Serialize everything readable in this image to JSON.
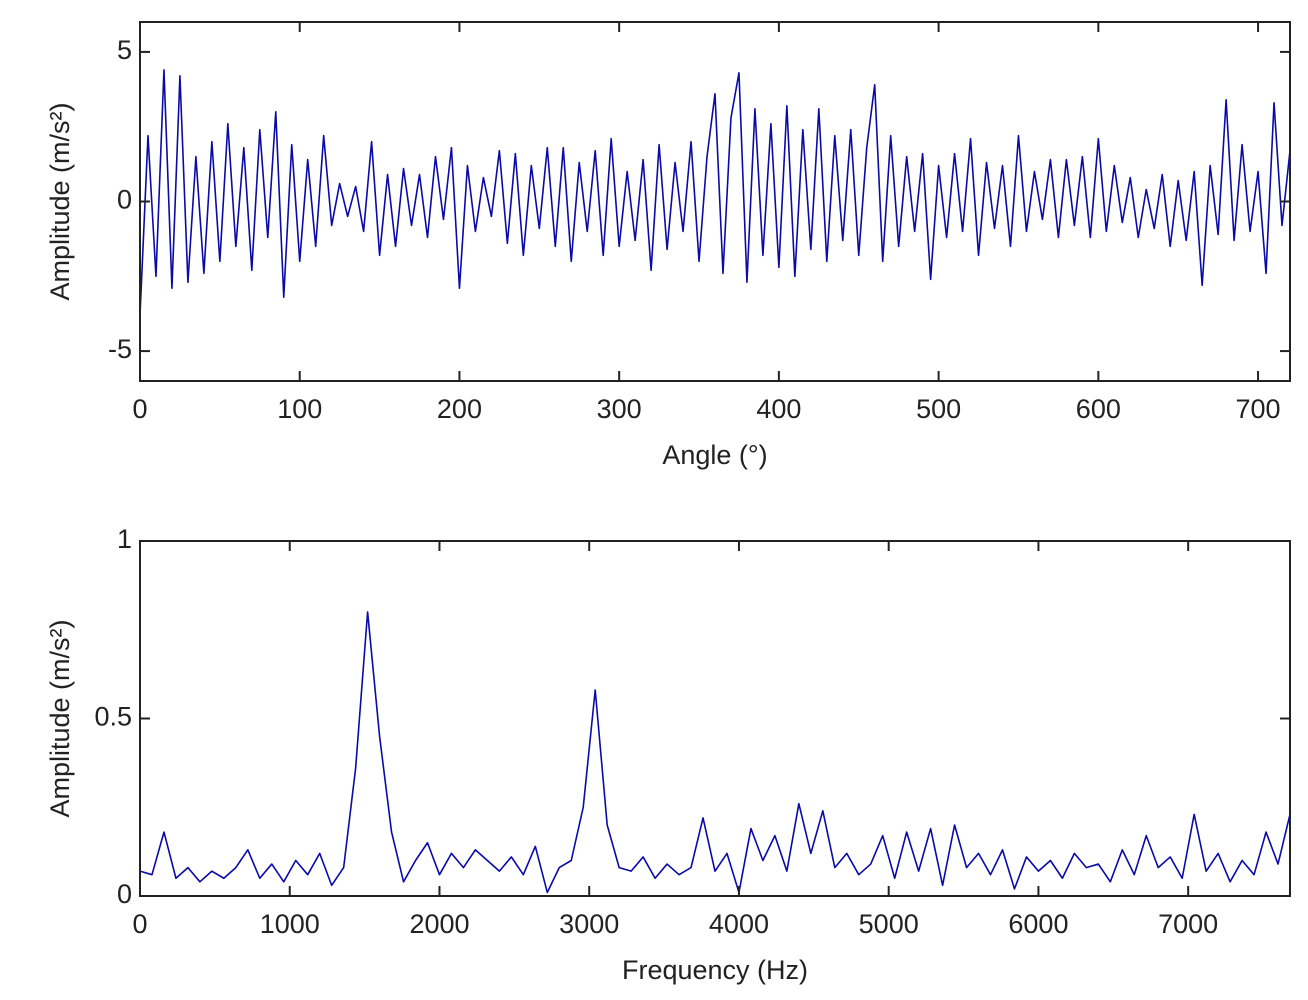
{
  "chart_data": [
    {
      "type": "line",
      "xlabel": "Angle (°)",
      "ylabel": "Amplitude (m/s²)",
      "color": "#0a0aa8",
      "xlim": [
        0,
        720
      ],
      "ylim": [
        -6,
        6
      ],
      "xticks": [
        0,
        100,
        200,
        300,
        400,
        500,
        600,
        700
      ],
      "yticks": [
        -5,
        0,
        5
      ],
      "x": [
        0,
        5,
        10,
        15,
        20,
        25,
        30,
        35,
        40,
        45,
        50,
        55,
        60,
        65,
        70,
        75,
        80,
        85,
        90,
        95,
        100,
        105,
        110,
        115,
        120,
        125,
        130,
        135,
        140,
        145,
        150,
        155,
        160,
        165,
        170,
        175,
        180,
        185,
        190,
        195,
        200,
        205,
        210,
        215,
        220,
        225,
        230,
        235,
        240,
        245,
        250,
        255,
        260,
        265,
        270,
        275,
        280,
        285,
        290,
        295,
        300,
        305,
        310,
        315,
        320,
        325,
        330,
        335,
        340,
        345,
        350,
        355,
        360,
        365,
        370,
        375,
        380,
        385,
        390,
        395,
        400,
        405,
        410,
        415,
        420,
        425,
        430,
        435,
        440,
        445,
        450,
        455,
        460,
        465,
        470,
        475,
        480,
        485,
        490,
        495,
        500,
        505,
        510,
        515,
        520,
        525,
        530,
        535,
        540,
        545,
        550,
        555,
        560,
        565,
        570,
        575,
        580,
        585,
        590,
        595,
        600,
        605,
        610,
        615,
        620,
        625,
        630,
        635,
        640,
        645,
        650,
        655,
        660,
        665,
        670,
        675,
        680,
        685,
        690,
        695,
        700,
        705,
        710,
        715,
        720
      ],
      "values": [
        -3.8,
        2.2,
        -2.5,
        4.4,
        -2.9,
        4.2,
        -2.7,
        1.5,
        -2.4,
        2.0,
        -2.0,
        2.6,
        -1.5,
        1.8,
        -2.3,
        2.4,
        -1.2,
        3.0,
        -3.2,
        1.9,
        -2.0,
        1.4,
        -1.5,
        2.2,
        -0.8,
        0.6,
        -0.5,
        0.5,
        -1.0,
        2.0,
        -1.8,
        0.9,
        -1.5,
        1.1,
        -0.8,
        0.9,
        -1.2,
        1.5,
        -0.6,
        1.8,
        -2.9,
        1.2,
        -1.0,
        0.8,
        -0.5,
        1.7,
        -1.4,
        1.6,
        -1.8,
        1.2,
        -0.9,
        1.8,
        -1.5,
        1.8,
        -2.0,
        1.3,
        -1.0,
        1.7,
        -1.8,
        2.1,
        -1.5,
        1.0,
        -1.3,
        1.4,
        -2.3,
        1.9,
        -1.6,
        1.3,
        -1.0,
        2.0,
        -2.0,
        1.5,
        3.6,
        -2.4,
        2.8,
        4.3,
        -2.7,
        3.1,
        -1.8,
        2.6,
        -2.2,
        3.2,
        -2.5,
        2.4,
        -1.6,
        3.1,
        -2.0,
        2.2,
        -1.3,
        2.4,
        -1.8,
        1.8,
        3.9,
        -2.0,
        2.2,
        -1.5,
        1.5,
        -1.0,
        1.6,
        -2.6,
        1.2,
        -1.2,
        1.6,
        -1.0,
        2.1,
        -1.8,
        1.3,
        -0.9,
        1.2,
        -1.5,
        2.2,
        -1.0,
        1.0,
        -0.6,
        1.4,
        -1.2,
        1.4,
        -0.8,
        1.5,
        -1.2,
        2.1,
        -1.0,
        1.2,
        -0.7,
        0.8,
        -1.2,
        0.4,
        -0.9,
        0.9,
        -1.5,
        0.7,
        -1.3,
        1.0,
        -2.8,
        1.2,
        -1.1,
        3.4,
        -1.3,
        1.9,
        -1.0,
        1.0,
        -2.4,
        3.3,
        -0.8,
        1.7
      ]
    },
    {
      "type": "line",
      "xlabel": "Frequency (Hz)",
      "ylabel": "Amplitude (m/s²)",
      "color": "#0a0aa8",
      "xlim": [
        0,
        7680
      ],
      "ylim": [
        0,
        1
      ],
      "xticks": [
        0,
        1000,
        2000,
        3000,
        4000,
        5000,
        6000,
        7000
      ],
      "yticks": [
        0,
        0.5,
        1
      ],
      "x": [
        0,
        80,
        160,
        240,
        320,
        400,
        480,
        560,
        640,
        720,
        800,
        880,
        960,
        1040,
        1120,
        1200,
        1280,
        1360,
        1440,
        1520,
        1600,
        1680,
        1760,
        1840,
        1920,
        2000,
        2080,
        2160,
        2240,
        2320,
        2400,
        2480,
        2560,
        2640,
        2720,
        2800,
        2880,
        2960,
        3040,
        3120,
        3200,
        3280,
        3360,
        3440,
        3520,
        3600,
        3680,
        3760,
        3840,
        3920,
        4000,
        4080,
        4160,
        4240,
        4320,
        4400,
        4480,
        4560,
        4640,
        4720,
        4800,
        4880,
        4960,
        5040,
        5120,
        5200,
        5280,
        5360,
        5440,
        5520,
        5600,
        5680,
        5760,
        5840,
        5920,
        6000,
        6080,
        6160,
        6240,
        6320,
        6400,
        6480,
        6560,
        6640,
        6720,
        6800,
        6880,
        6960,
        7040,
        7120,
        7200,
        7280,
        7360,
        7440,
        7520,
        7600,
        7680
      ],
      "values": [
        0.07,
        0.06,
        0.18,
        0.05,
        0.08,
        0.04,
        0.07,
        0.05,
        0.08,
        0.13,
        0.05,
        0.09,
        0.04,
        0.1,
        0.06,
        0.12,
        0.03,
        0.08,
        0.36,
        0.8,
        0.45,
        0.18,
        0.04,
        0.1,
        0.15,
        0.06,
        0.12,
        0.08,
        0.13,
        0.1,
        0.07,
        0.11,
        0.06,
        0.14,
        0.01,
        0.08,
        0.1,
        0.25,
        0.58,
        0.2,
        0.08,
        0.07,
        0.11,
        0.05,
        0.09,
        0.06,
        0.08,
        0.22,
        0.07,
        0.12,
        0.01,
        0.19,
        0.1,
        0.17,
        0.07,
        0.26,
        0.12,
        0.24,
        0.08,
        0.12,
        0.06,
        0.09,
        0.17,
        0.05,
        0.18,
        0.07,
        0.19,
        0.03,
        0.2,
        0.08,
        0.12,
        0.06,
        0.13,
        0.02,
        0.11,
        0.07,
        0.1,
        0.05,
        0.12,
        0.08,
        0.09,
        0.04,
        0.13,
        0.06,
        0.17,
        0.08,
        0.11,
        0.05,
        0.23,
        0.07,
        0.12,
        0.04,
        0.1,
        0.06,
        0.18,
        0.09,
        0.23
      ]
    }
  ]
}
